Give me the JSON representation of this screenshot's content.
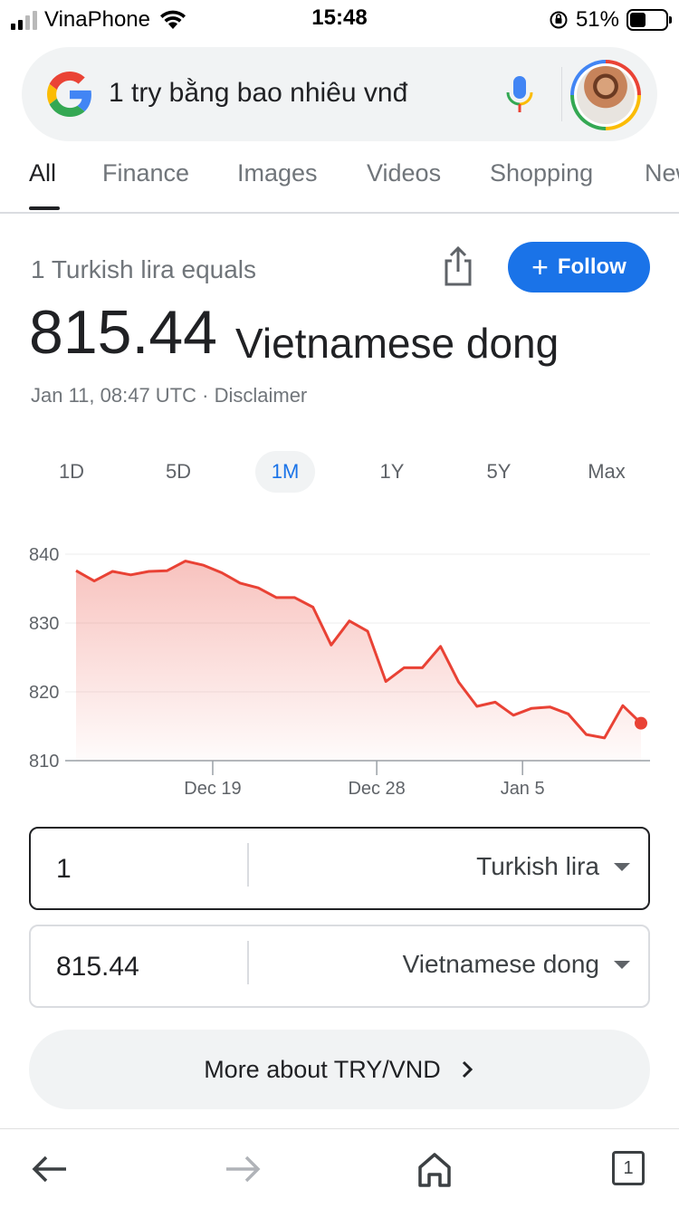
{
  "status_bar": {
    "carrier": "VinaPhone",
    "time": "15:48",
    "battery_percent": "51%",
    "battery_level": 0.51
  },
  "search": {
    "query": "1 try bằng bao nhiêu vnđ",
    "icons": [
      "google-logo",
      "mic-icon",
      "avatar"
    ]
  },
  "tabs": [
    {
      "label": "All",
      "active": true
    },
    {
      "label": "Finance"
    },
    {
      "label": "Images"
    },
    {
      "label": "Videos"
    },
    {
      "label": "Shopping"
    },
    {
      "label": "New"
    }
  ],
  "header": {
    "equals_text": "1 Turkish lira equals",
    "rate_value": "815.44",
    "rate_unit": "Vietnamese dong",
    "timestamp": "Jan 11, 08:47 UTC · Disclaimer",
    "follow_label": "Follow"
  },
  "ranges": [
    {
      "label": "1D"
    },
    {
      "label": "5D"
    },
    {
      "label": "1M",
      "active": true
    },
    {
      "label": "1Y"
    },
    {
      "label": "5Y"
    },
    {
      "label": "Max"
    }
  ],
  "chart_data": {
    "type": "area",
    "y_ticks": [
      "840",
      "830",
      "820",
      "810"
    ],
    "ylim": [
      810,
      840
    ],
    "x_labels": [
      {
        "label": "Dec 19",
        "index": 7.5
      },
      {
        "label": "Dec 28",
        "index": 16.5
      },
      {
        "label": "Jan 5",
        "index": 24.5
      }
    ],
    "values": [
      837.6,
      836.1,
      837.5,
      837.0,
      837.5,
      837.6,
      839.0,
      838.4,
      837.3,
      835.8,
      835.1,
      833.7,
      833.7,
      832.3,
      826.8,
      830.3,
      828.8,
      821.5,
      823.5,
      823.5,
      826.6,
      821.4,
      817.9,
      818.5,
      816.6,
      817.6,
      817.8,
      816.8,
      813.8,
      813.3,
      818.0,
      815.44
    ],
    "color": "#e94235"
  },
  "converter": {
    "from_amount": "1",
    "from_currency": "Turkish lira",
    "to_amount": "815.44",
    "to_currency": "Vietnamese dong"
  },
  "more_button": {
    "label": "More about TRY/VND"
  },
  "toolbar": {
    "tab_count": "1"
  }
}
